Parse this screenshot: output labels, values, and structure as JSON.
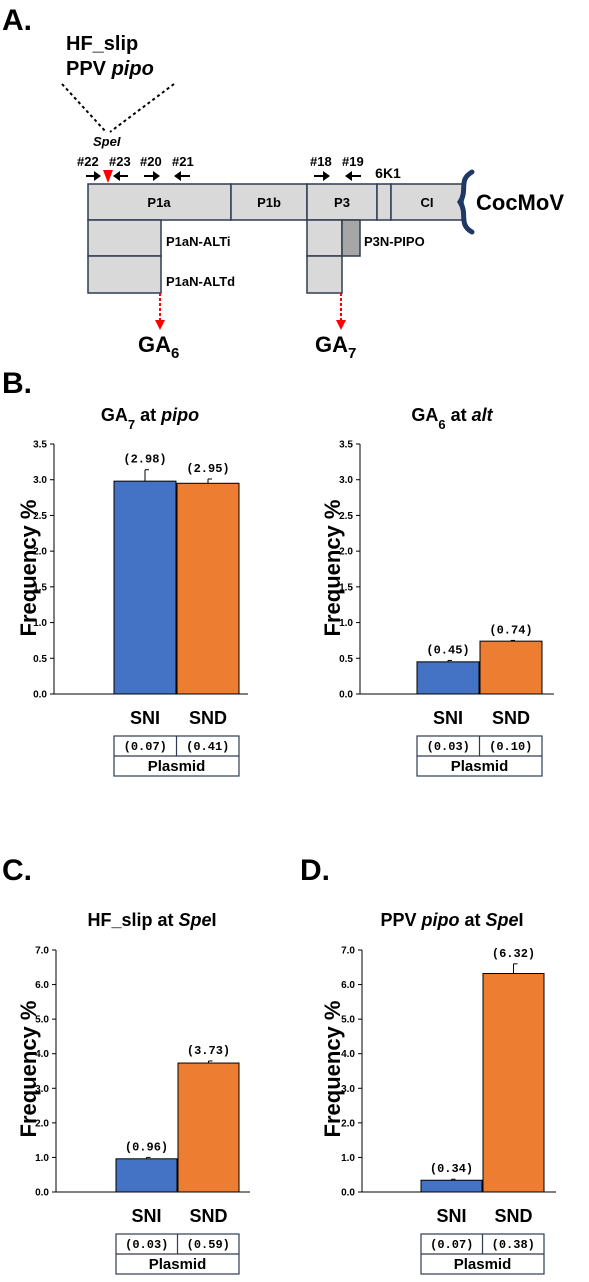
{
  "panel_a": {
    "letter": "A.",
    "construct_line1": "HF_slip",
    "construct_line2_prefix": "PPV ",
    "construct_line2_italic": "pipo",
    "site_label": "SpeI",
    "primers": [
      "#22",
      "#23",
      "#20",
      "#21",
      "#18",
      "#19"
    ],
    "segments": [
      "P1a",
      "P1b",
      "P3",
      "6K1",
      "CI"
    ],
    "virus": "CocMoV",
    "products": [
      "P1aN-ALTi",
      "P1aN-ALTd",
      "P3N-PIPO"
    ],
    "ga6_base": "GA",
    "ga6_sub": "6",
    "ga7_base": "GA",
    "ga7_sub": "7",
    "colors": {
      "box_fill": "#d9d9d9",
      "box_stroke": "#2f3b52",
      "pipo_fill": "#a6a6a6",
      "arrow_red": "#ff0000"
    }
  },
  "panel_b": {
    "letter": "B."
  },
  "panel_c": {
    "letter": "C."
  },
  "panel_d": {
    "letter": "D."
  },
  "series_colors": {
    "SNI": "#4472c4",
    "SND": "#ed7d31"
  },
  "chart_data": [
    {
      "type": "bar",
      "title_parts": [
        {
          "t": "GA",
          "s": "b"
        },
        {
          "t": "7",
          "s": "sub"
        },
        {
          "t": " at ",
          "s": "b"
        },
        {
          "t": "pipo",
          "s": "i"
        }
      ],
      "ylabel": "Frequency %",
      "ylim": [
        0,
        3.5
      ],
      "yticks": [
        "0.0",
        "0.5",
        "1.0",
        "1.5",
        "2.0",
        "2.5",
        "3.0",
        "3.5"
      ],
      "categories": [
        "SNI",
        "SND"
      ],
      "values": [
        2.98,
        2.95
      ],
      "errors": [
        0.16,
        0.06
      ],
      "value_labels": [
        "(2.98)",
        "(2.95)"
      ],
      "plasmid_values": [
        "(0.07)",
        "(0.41)"
      ],
      "plasmid_label": "Plasmid"
    },
    {
      "type": "bar",
      "title_parts": [
        {
          "t": "GA",
          "s": "b"
        },
        {
          "t": "6",
          "s": "sub"
        },
        {
          "t": " at ",
          "s": "b"
        },
        {
          "t": "alt",
          "s": "i"
        }
      ],
      "ylabel": "Frequency %",
      "ylim": [
        0,
        3.5
      ],
      "yticks": [
        "0.0",
        "0.5",
        "1.0",
        "1.5",
        "2.0",
        "2.5",
        "3.0",
        "3.5"
      ],
      "categories": [
        "SNI",
        "SND"
      ],
      "values": [
        0.45,
        0.74
      ],
      "errors": [
        0.02,
        0.01
      ],
      "value_labels": [
        "(0.45)",
        "(0.74)"
      ],
      "plasmid_values": [
        "(0.03)",
        "(0.10)"
      ],
      "plasmid_label": "Plasmid"
    },
    {
      "type": "bar",
      "title_parts": [
        {
          "t": "HF_slip at ",
          "s": "b"
        },
        {
          "t": "Spe",
          "s": "i"
        },
        {
          "t": "I",
          "s": "b"
        }
      ],
      "ylabel": "Frequency %",
      "ylim": [
        0,
        7.0
      ],
      "yticks": [
        "0.0",
        "1.0",
        "2.0",
        "3.0",
        "4.0",
        "5.0",
        "6.0",
        "7.0"
      ],
      "categories": [
        "SNI",
        "SND"
      ],
      "values": [
        0.96,
        3.73
      ],
      "errors": [
        0.04,
        0.06
      ],
      "value_labels": [
        "(0.96)",
        "(3.73)"
      ],
      "plasmid_values": [
        "(0.03)",
        "(0.59)"
      ],
      "plasmid_label": "Plasmid"
    },
    {
      "type": "bar",
      "title_parts": [
        {
          "t": "PPV ",
          "s": "b"
        },
        {
          "t": "pipo",
          "s": "i"
        },
        {
          "t": " at ",
          "s": "b"
        },
        {
          "t": "Spe",
          "s": "i"
        },
        {
          "t": "I",
          "s": "b"
        }
      ],
      "ylabel": "Frequency %",
      "ylim": [
        0,
        7.0
      ],
      "yticks": [
        "0.0",
        "1.0",
        "2.0",
        "3.0",
        "4.0",
        "5.0",
        "6.0",
        "7.0"
      ],
      "categories": [
        "SNI",
        "SND"
      ],
      "values": [
        0.34,
        6.32
      ],
      "errors": [
        0.03,
        0.28
      ],
      "value_labels": [
        "(0.34)",
        "(6.32)"
      ],
      "plasmid_values": [
        "(0.07)",
        "(0.38)"
      ],
      "plasmid_label": "Plasmid"
    }
  ]
}
